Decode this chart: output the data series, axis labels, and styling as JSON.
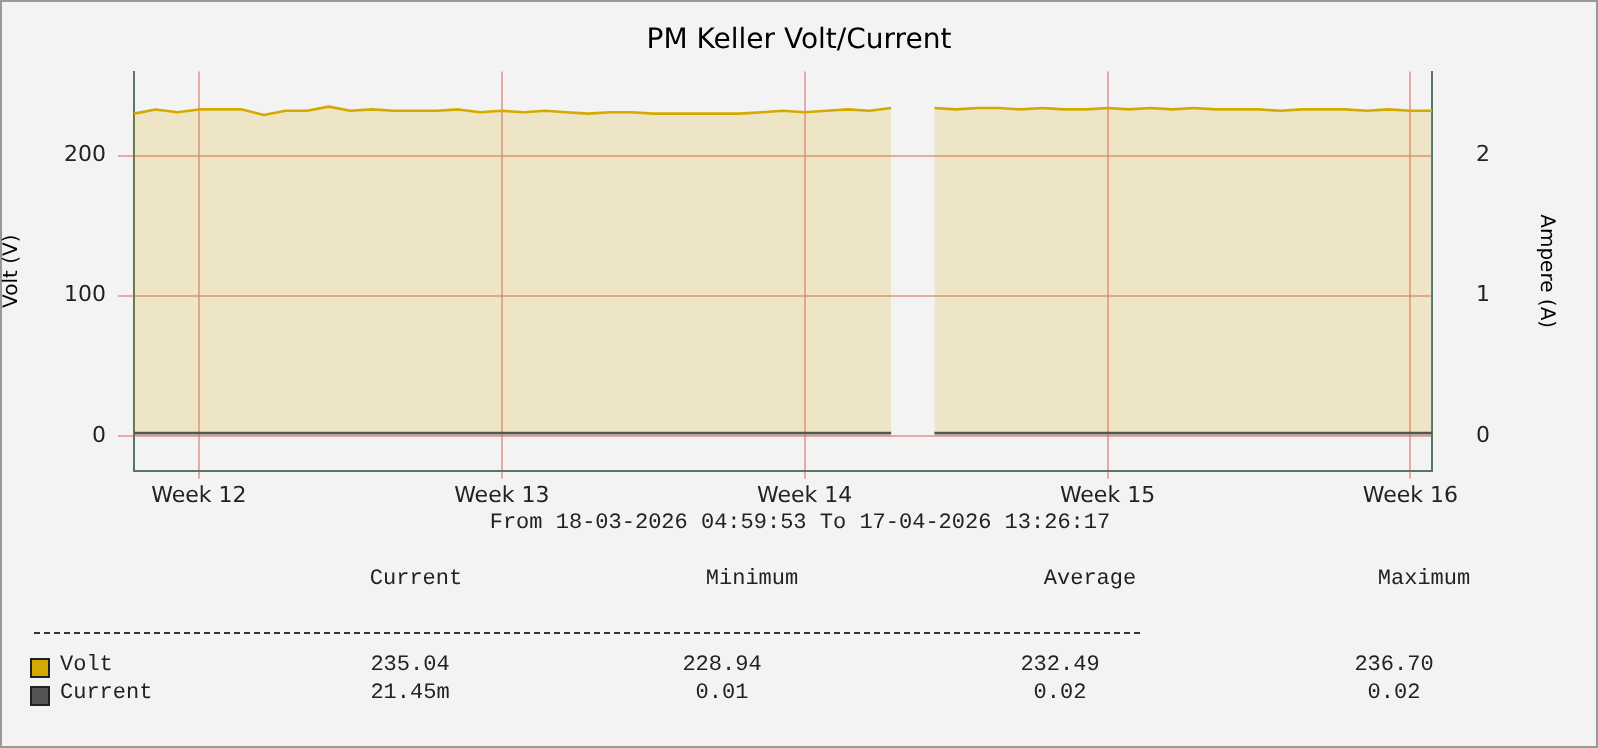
{
  "chart_data": {
    "type": "area",
    "title": "PM Keller Volt/Current",
    "ylabel": "Volt (V)",
    "y2label": "Ampere (A)",
    "categories": [
      null,
      null,
      null,
      "Week 12",
      null,
      null,
      null,
      null,
      null,
      null,
      null,
      null,
      null,
      null,
      null,
      null,
      null,
      "Week 13",
      null,
      null,
      null,
      null,
      null,
      null,
      null,
      null,
      null,
      null,
      null,
      null,
      null,
      "Week 14",
      null,
      null,
      null,
      null,
      null,
      null,
      null,
      null,
      null,
      null,
      null,
      null,
      null,
      "Week 15",
      null,
      null,
      null,
      null,
      null,
      null,
      null,
      null,
      null,
      null,
      null,
      null,
      null,
      "Week 16",
      null
    ],
    "series": [
      {
        "name": "Volt",
        "color": "#d4aa00",
        "values": [
          230,
          233,
          231,
          233,
          233,
          233,
          229,
          232,
          232,
          235,
          232,
          233,
          232,
          232,
          232,
          233,
          231,
          232,
          231,
          232,
          231,
          230,
          231,
          231,
          230,
          230,
          230,
          230,
          230,
          231,
          232,
          231,
          232,
          233,
          232,
          234,
          null,
          234,
          233,
          234,
          234,
          233,
          234,
          233,
          233,
          234,
          233,
          234,
          233,
          234,
          233,
          233,
          233,
          232,
          233,
          233,
          233,
          232,
          233,
          232,
          232
        ]
      },
      {
        "name": "Current",
        "color": "#555555",
        "axis": "y2",
        "values": [
          0.02,
          0.02,
          0.02,
          0.02,
          0.02,
          0.02,
          0.02,
          0.02,
          0.02,
          0.02,
          0.02,
          0.02,
          0.02,
          0.02,
          0.02,
          0.02,
          0.02,
          0.02,
          0.02,
          0.02,
          0.02,
          0.02,
          0.02,
          0.02,
          0.02,
          0.02,
          0.02,
          0.02,
          0.02,
          0.02,
          0.02,
          0.02,
          0.02,
          0.02,
          0.02,
          0.02,
          null,
          0.02,
          0.02,
          0.02,
          0.02,
          0.02,
          0.02,
          0.02,
          0.02,
          0.02,
          0.02,
          0.02,
          0.02,
          0.02,
          0.02,
          0.02,
          0.02,
          0.02,
          0.02,
          0.02,
          0.02,
          0.02,
          0.02,
          0.02,
          0.02
        ]
      }
    ],
    "ylim": [
      -25,
      260
    ],
    "yticks": [
      0,
      100,
      200
    ],
    "y2lim": [
      -0.25,
      2.6
    ],
    "y2ticks": [
      0,
      1,
      2
    ],
    "grid": true,
    "legend": "bottom",
    "marker": "none",
    "line_style": "solid",
    "annotations": [
      "From 18-03-2026 04:59:53 To 17-04-2026 13:26:17",
      "Current",
      "Minimum",
      "Average",
      "Maximum",
      "235.04",
      "228.94",
      "232.49",
      "236.70",
      "21.45m",
      "0.01",
      "0.02",
      "0.02"
    ]
  }
}
